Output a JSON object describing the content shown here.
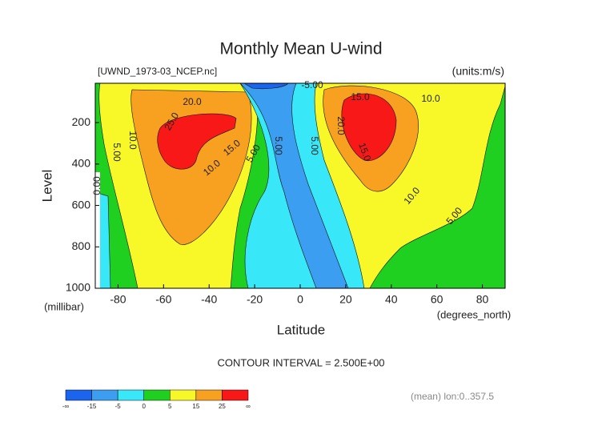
{
  "chart_data": {
    "type": "contour",
    "title": "Monthly Mean U-wind",
    "subtitle": "[UWND_1973-03_NCEP.nc]",
    "units": "(units:m/s)",
    "y_label": "Level",
    "y_unit": "(millibar)",
    "x_label": "Latitude",
    "x_unit": "(degrees_north)",
    "xlim": [
      -90,
      90
    ],
    "xticks": [
      -80,
      -60,
      -40,
      -20,
      0,
      20,
      40,
      60,
      80
    ],
    "ylim": [
      1000,
      10
    ],
    "yticks": [
      200,
      400,
      600,
      800,
      1000
    ],
    "contour_interval": "CONTOUR INTERVAL = 2.500E+00",
    "note": "(mean) lon:0..357.5",
    "colorbar": {
      "levels": [
        "-∞",
        -15,
        -5,
        0,
        5,
        15,
        25,
        "∞"
      ],
      "colors": [
        "#1a64ee",
        "#3c9ef0",
        "#38e8f8",
        "#20d020",
        "#f8f828",
        "#f8a020",
        "#f81818"
      ]
    },
    "contour_labels": [
      "20.0",
      "25.0",
      "10.0",
      "5.00",
      "0.00",
      "15.0",
      "10.0",
      "5.00",
      "5.00",
      "-5.00",
      "15.0",
      "10.0",
      "20.0",
      "15.0",
      "10.0",
      "5.00",
      "5.00"
    ]
  }
}
